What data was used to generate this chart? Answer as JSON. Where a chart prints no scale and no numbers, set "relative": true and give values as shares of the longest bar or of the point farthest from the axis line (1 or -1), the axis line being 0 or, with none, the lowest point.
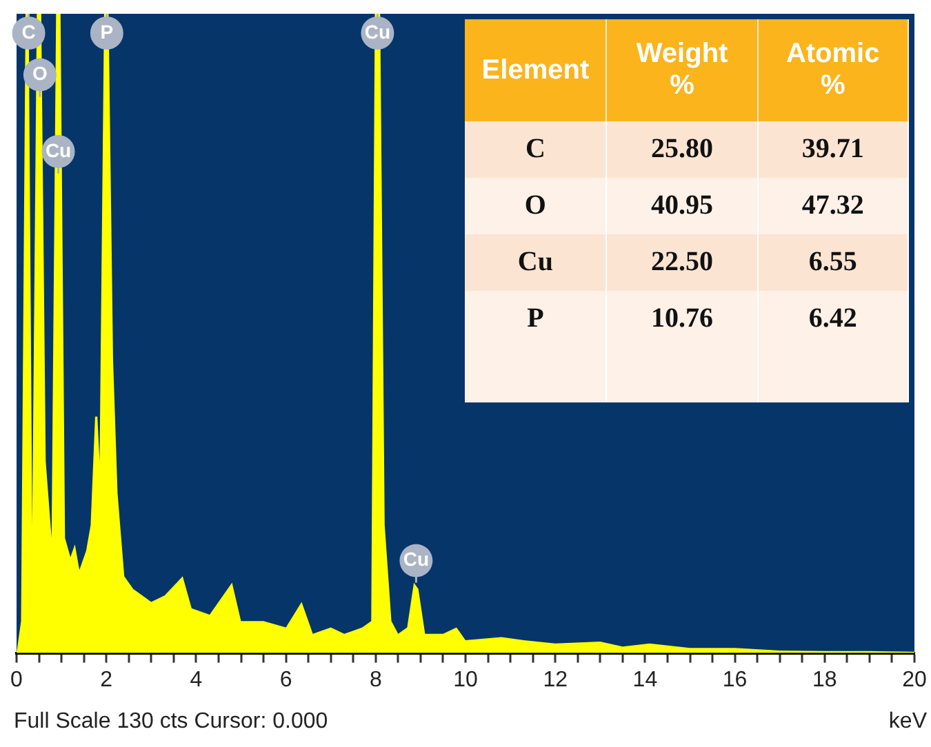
{
  "chart_data": [
    {
      "type": "area",
      "relative": true,
      "xlabel": "keV",
      "xlim": [
        0,
        20
      ],
      "xticks": [
        0,
        {
          "value": 0.5,
          "label": null
        },
        2,
        {
          "value": 1,
          "label": null
        },
        {
          "value": 1.5,
          "label": null
        },
        {
          "value": 2.5,
          "label": null
        },
        {
          "value": 3,
          "label": null
        },
        {
          "value": 3.5,
          "label": null
        },
        4,
        {
          "value": 4.5,
          "label": null
        },
        {
          "value": 5,
          "label": null
        },
        {
          "value": 5.5,
          "label": null
        },
        6,
        {
          "value": 6.5,
          "label": null
        },
        {
          "value": 7,
          "label": null
        },
        {
          "value": 7.5,
          "label": null
        },
        8,
        {
          "value": 8.5,
          "label": null
        },
        {
          "value": 9,
          "label": null
        },
        {
          "value": 9.5,
          "label": null
        },
        10,
        {
          "value": 10.5,
          "label": null
        },
        {
          "value": 11,
          "label": null
        },
        {
          "value": 11.5,
          "label": null
        },
        12,
        {
          "value": 12.5,
          "label": null
        },
        {
          "value": 13,
          "label": null
        },
        {
          "value": 13.5,
          "label": null
        },
        14,
        {
          "value": 14.5,
          "label": null
        },
        {
          "value": 15,
          "label": null
        },
        {
          "value": 15.5,
          "label": null
        },
        16,
        {
          "value": 16.5,
          "label": null
        },
        {
          "value": 17,
          "label": null
        },
        {
          "value": 17.5,
          "label": null
        },
        18,
        {
          "value": 18.5,
          "label": null
        },
        {
          "value": 19,
          "label": null
        },
        {
          "value": 19.5,
          "label": null
        },
        20
      ],
      "x": [
        0,
        0.1,
        0.2,
        0.27,
        0.35,
        0.45,
        0.55,
        0.65,
        0.78,
        0.88,
        0.98,
        1.08,
        1.2,
        1.3,
        1.4,
        1.55,
        1.65,
        1.75,
        1.8,
        1.85,
        1.95,
        2.05,
        2.15,
        2.25,
        2.4,
        2.6,
        2.8,
        3.0,
        3.3,
        3.7,
        3.9,
        4.3,
        4.8,
        5.0,
        5.5,
        6.0,
        6.35,
        6.6,
        7.0,
        7.3,
        7.7,
        7.9,
        7.98,
        8.1,
        8.2,
        8.35,
        8.5,
        8.7,
        8.85,
        8.95,
        9.1,
        9.5,
        9.8,
        10,
        10.8,
        11.3,
        12,
        13,
        13.5,
        14.1,
        15,
        16,
        17,
        18,
        19,
        20
      ],
      "series": [
        {
          "color": "#ffff00",
          "values": [
            0,
            0.05,
            1,
            1,
            0.2,
            1,
            1,
            0.3,
            0.18,
            1,
            1,
            0.18,
            0.15,
            0.17,
            0.13,
            0.16,
            0.2,
            0.37,
            0.37,
            0.3,
            1,
            1,
            0.46,
            0.25,
            0.12,
            0.1,
            0.09,
            0.08,
            0.09,
            0.12,
            0.07,
            0.06,
            0.11,
            0.05,
            0.05,
            0.04,
            0.08,
            0.03,
            0.04,
            0.03,
            0.04,
            0.05,
            1,
            1,
            0.2,
            0.05,
            0.03,
            0.04,
            0.11,
            0.1,
            0.03,
            0.03,
            0.04,
            0.02,
            0.025,
            0.02,
            0.015,
            0.018,
            0.01,
            0.015,
            0.008,
            0.008,
            0.004,
            0.003,
            0.003,
            0.002
          ]
        }
      ],
      "annotations": [
        {
          "text": "C",
          "x": 0.27,
          "y": 1
        },
        {
          "text": "O",
          "x": 0.52,
          "y": 0.87
        },
        {
          "text": "Cu",
          "x": 0.93,
          "y": 0.75
        },
        {
          "text": "P",
          "x": 2.01,
          "y": 1
        },
        {
          "text": "Cu",
          "x": 8.04,
          "y": 1
        },
        {
          "text": "Cu",
          "x": 8.9,
          "y": 0.11
        },
        "Full Scale 130 cts Cursor: 0.000"
      ]
    },
    {
      "type": "other",
      "xlabel": "Element",
      "categories": [
        "C",
        "O",
        "Cu",
        "P"
      ],
      "series": [
        {
          "name": "Weight %",
          "values": [
            25.8,
            40.95,
            22.5,
            10.76
          ],
          "value_labels": [
            "25.80",
            "40.95",
            "22.50",
            "10.76"
          ],
          "colors": [
            "#fce4d2",
            "#fdf1e8",
            "#fce4d2",
            "#fdf1e8"
          ]
        },
        {
          "name": "Atomic %",
          "values": [
            39.71,
            47.32,
            6.55,
            6.42
          ],
          "value_labels": [
            "39.71",
            "47.32",
            "6.55",
            "6.42"
          ],
          "colors": [
            "#fce4d2",
            "#fdf1e8",
            "#fce4d2",
            "#fdf1e8"
          ]
        }
      ],
      "data_labels": true
    }
  ]
}
